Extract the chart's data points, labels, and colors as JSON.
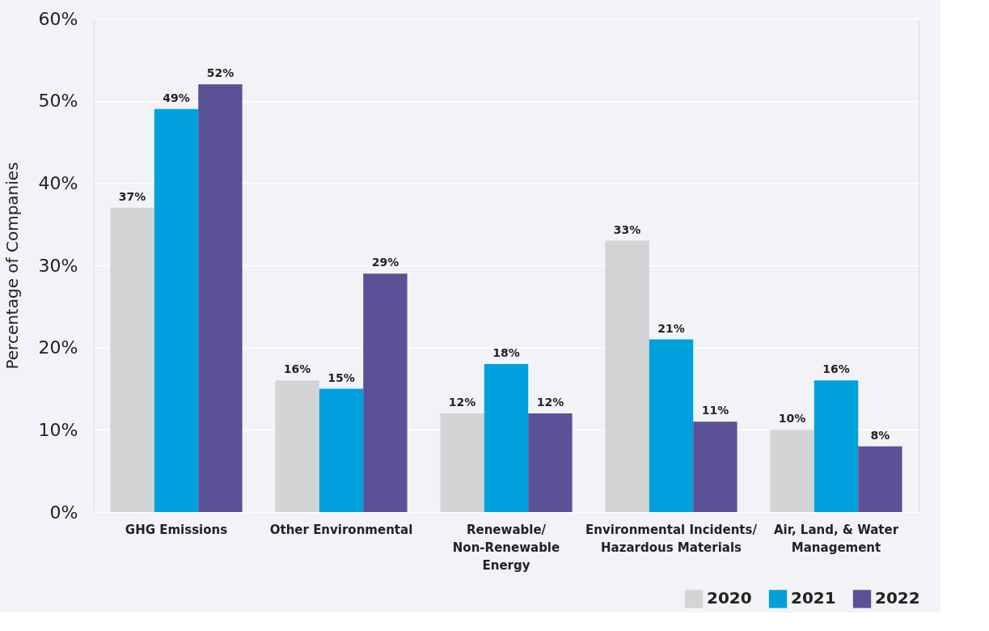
{
  "chart_data": {
    "type": "bar",
    "ylabel": "Percentage of Companies",
    "categories": [
      "GHG Emissions",
      "Other Environmental",
      "Renewable/\nNon-Renewable\nEnergy",
      "Environmental Incidents/\nHazardous Materials",
      "Air, Land, & Water\nManagement"
    ],
    "series": [
      {
        "name": "2020",
        "color": "#d3d4d6",
        "values": [
          37,
          16,
          12,
          33,
          10
        ],
        "value_labels": [
          "37%",
          "16%",
          "12%",
          "33%",
          "10%"
        ]
      },
      {
        "name": "2021",
        "color": "#00a0dc",
        "values": [
          49,
          15,
          18,
          21,
          16
        ],
        "value_labels": [
          "49%",
          "15%",
          "18%",
          "21%",
          "16%"
        ]
      },
      {
        "name": "2022",
        "color": "#5b5196",
        "values": [
          52,
          29,
          12,
          11,
          8
        ],
        "value_labels": [
          "52%",
          "29%",
          "12%",
          "11%",
          "8%"
        ]
      }
    ],
    "ylim": [
      0,
      60
    ],
    "yticks": [
      {
        "value": 0,
        "label": "0%"
      },
      {
        "value": 10,
        "label": "10%"
      },
      {
        "value": 20,
        "label": "20%"
      },
      {
        "value": 30,
        "label": "30%"
      },
      {
        "value": 40,
        "label": "40%"
      },
      {
        "value": 50,
        "label": "50%"
      },
      {
        "value": 60,
        "label": "60%"
      }
    ],
    "grid": "y",
    "legend": "bottom right"
  }
}
